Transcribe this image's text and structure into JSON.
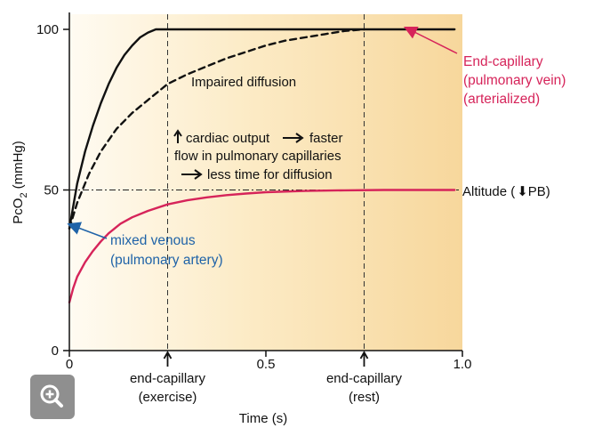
{
  "chart_data": {
    "type": "line",
    "xlabel": "Time (s)",
    "ylabel_main": "Pc",
    "ylabel_sub": "O",
    "ylabel_subscript": "2",
    "ylabel_unit": "(mmHg)",
    "xlim": [
      0,
      1.0
    ],
    "ylim": [
      0,
      100
    ],
    "x_ticks": [
      {
        "value": 0,
        "label": "0"
      },
      {
        "value": 0.5,
        "label": "0.5"
      },
      {
        "value": 1.0,
        "label": "1.0"
      }
    ],
    "y_ticks": [
      {
        "value": 0,
        "label": "0"
      },
      {
        "value": 50,
        "label": "50"
      },
      {
        "value": 100,
        "label": "100"
      }
    ],
    "series": [
      {
        "name": "End-capillary (pulmonary vein) (arterialized)",
        "color": "#111111",
        "style": "solid",
        "x": [
          0,
          0.02,
          0.04,
          0.06,
          0.08,
          0.1,
          0.12,
          0.14,
          0.16,
          0.18,
          0.2,
          0.22,
          0.24,
          0.3,
          0.4,
          0.5,
          0.6,
          0.7,
          0.8,
          0.9,
          0.98
        ],
        "y": [
          38,
          52,
          62,
          70,
          77,
          83,
          88,
          92,
          95,
          97.5,
          99,
          100,
          100,
          100,
          100,
          100,
          100,
          100,
          100,
          100,
          100
        ]
      },
      {
        "name": "Impaired diffusion",
        "color": "#111111",
        "style": "dashed",
        "x": [
          0,
          0.02,
          0.05,
          0.08,
          0.12,
          0.16,
          0.2,
          0.25,
          0.3,
          0.35,
          0.4,
          0.45,
          0.5,
          0.55,
          0.6,
          0.65,
          0.7,
          0.75
        ],
        "y": [
          38,
          46,
          55,
          62,
          69,
          74,
          78,
          83,
          86,
          88.5,
          91,
          93,
          95,
          96.5,
          97.5,
          98.5,
          99.5,
          100
        ]
      },
      {
        "name": "Altitude",
        "color": "#d6245a",
        "style": "solid",
        "x": [
          0,
          0.01,
          0.02,
          0.04,
          0.06,
          0.08,
          0.1,
          0.13,
          0.16,
          0.2,
          0.25,
          0.3,
          0.35,
          0.4,
          0.45,
          0.5,
          0.6,
          0.7,
          0.8,
          0.9,
          0.98
        ],
        "y": [
          15,
          19.5,
          23,
          27.5,
          31,
          34,
          36.5,
          39.5,
          41.5,
          43.5,
          45.5,
          46.8,
          47.7,
          48.4,
          48.9,
          49.3,
          49.7,
          49.9,
          50,
          50,
          50
        ]
      }
    ],
    "reference_lines": [
      {
        "kind": "horizontal",
        "y": 50,
        "style": "dash-dot",
        "label": "Altitude (↓PB)"
      },
      {
        "kind": "vertical",
        "x": 0.25,
        "style": "dashed"
      },
      {
        "kind": "vertical",
        "x": 0.75,
        "style": "dashed"
      }
    ],
    "x_markers": [
      {
        "x": 0.25,
        "line1": "end-capillary",
        "line2": "(exercise)"
      },
      {
        "x": 0.75,
        "line1": "end-capillary",
        "line2": "(rest)"
      }
    ],
    "annotations": {
      "end_capillary": [
        "End-capillary",
        "(pulmonary vein)",
        "(arterialized)"
      ],
      "impaired": "Impaired diffusion",
      "mixed_venous": [
        "mixed venous",
        "(pulmonary artery)"
      ],
      "altitude_prefix": "Altitude (",
      "altitude_suffix": "PB)",
      "cardiac_line1": "cardiac output",
      "cardiac_line1b": "faster",
      "cardiac_line2": "flow in pulmonary capillaries",
      "cardiac_line3": "less time for diffusion"
    },
    "colors": {
      "bg_light": "#fffbf2",
      "bg_dark": "#f7dca6",
      "accent_red": "#d6245a",
      "accent_blue": "#1f63a8"
    }
  },
  "zoom_button": {
    "icon": "zoom-in-icon"
  }
}
